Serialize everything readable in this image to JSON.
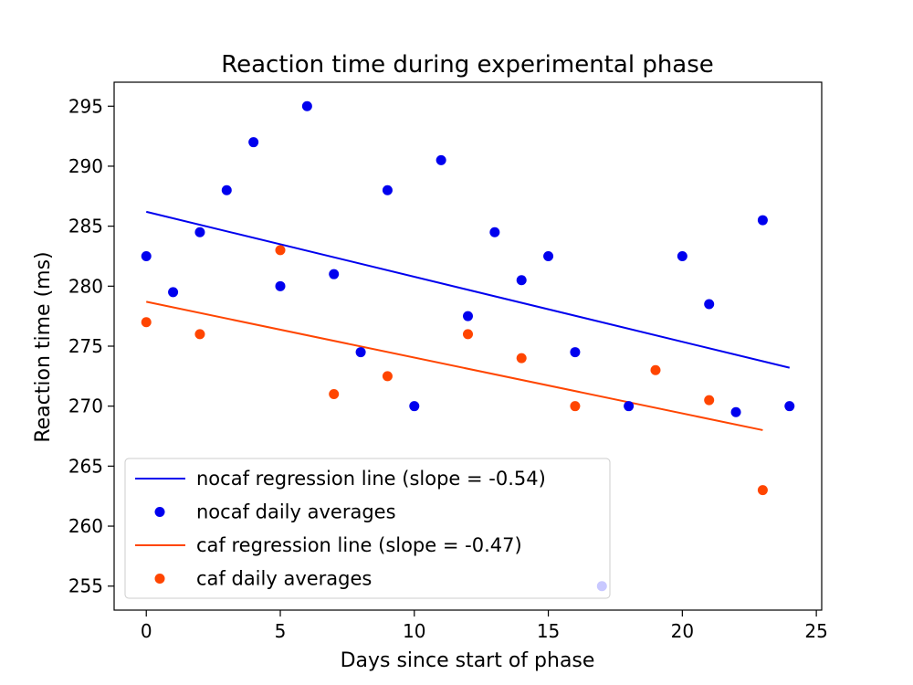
{
  "chart_data": {
    "type": "scatter",
    "title": "Reaction time during experimental phase",
    "xlabel": "Days since start of phase",
    "ylabel": "Reaction time (ms)",
    "xlim": [
      -1.2,
      25.2
    ],
    "ylim": [
      253,
      297
    ],
    "xticks": [
      0,
      5,
      10,
      15,
      20,
      25
    ],
    "yticks": [
      255,
      260,
      265,
      270,
      275,
      280,
      285,
      290,
      295
    ],
    "grid": false,
    "legend_position": "lower-left",
    "series": [
      {
        "name": "nocaf daily averages",
        "kind": "scatter",
        "color": "#0000ee",
        "x": [
          0,
          1,
          2,
          3,
          4,
          5,
          6,
          7,
          8,
          9,
          10,
          11,
          12,
          13,
          14,
          15,
          16,
          18,
          20,
          21,
          22,
          23,
          24
        ],
        "y": [
          282.5,
          279.5,
          284.5,
          288,
          292,
          280,
          295,
          281,
          274.5,
          288,
          270,
          290.5,
          277.5,
          284.5,
          280.5,
          282.5,
          274.5,
          270,
          282.5,
          278.5,
          269.5,
          285.5,
          270
        ]
      },
      {
        "name": "caf daily averages",
        "kind": "scatter",
        "color": "#ff4500",
        "x": [
          0,
          2,
          5,
          7,
          9,
          12,
          14,
          16,
          19,
          21,
          23
        ],
        "y": [
          277,
          276,
          283,
          271,
          272.5,
          276,
          274,
          270,
          273,
          270.5,
          263
        ]
      }
    ],
    "extra_points": [
      {
        "x": 17,
        "y": 255,
        "color": "#c8c8ff"
      }
    ],
    "regression_lines": [
      {
        "name": "nocaf regression line (slope = -0.54)",
        "color": "#0000ee",
        "x": [
          0,
          24
        ],
        "y": [
          286.2,
          273.2
        ]
      },
      {
        "name": "caf regression line (slope = -0.47)",
        "color": "#ff4500",
        "x": [
          0,
          23
        ],
        "y": [
          278.7,
          268
        ]
      }
    ],
    "legend": [
      {
        "label": "nocaf regression line (slope = -0.54)",
        "kind": "line",
        "color": "#0000ee"
      },
      {
        "label": "nocaf daily averages",
        "kind": "marker",
        "color": "#0000ee"
      },
      {
        "label": "caf regression line (slope = -0.47)",
        "kind": "line",
        "color": "#ff4500"
      },
      {
        "label": "caf daily averages",
        "kind": "marker",
        "color": "#ff4500"
      }
    ]
  }
}
